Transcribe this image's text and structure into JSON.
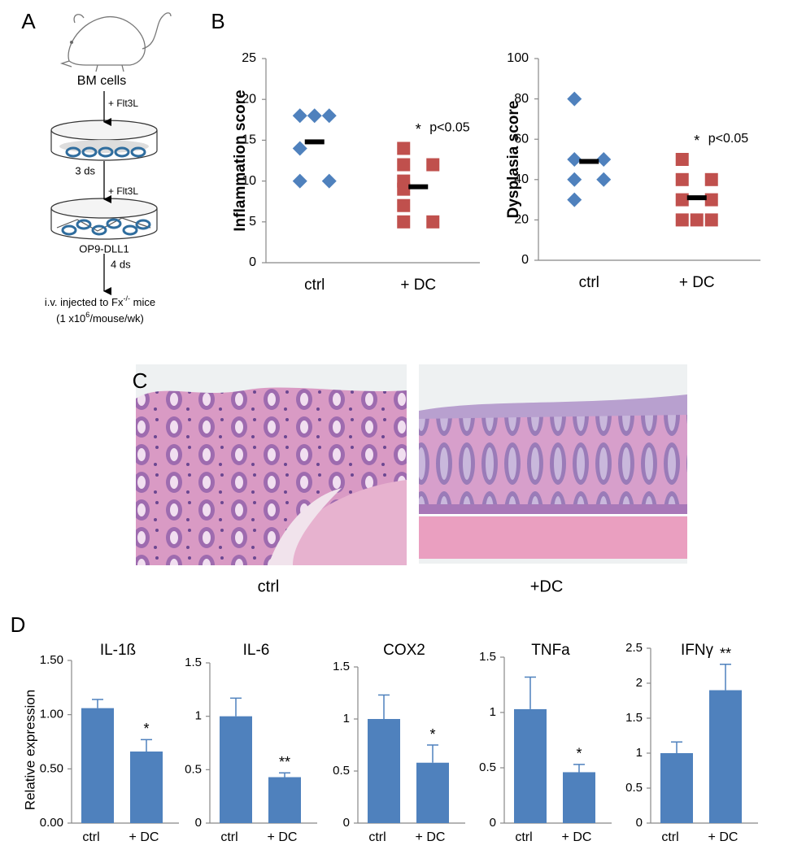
{
  "panel_labels": [
    "A",
    "B",
    "C",
    "D"
  ],
  "schematic": {
    "source": "BM cells",
    "step1": "+ Flt3L",
    "step2_time": "3 ds",
    "step2": "+ Flt3L",
    "culture": "OP9-DLL1",
    "step3_time": "4 ds",
    "outcome": [
      "i.v. injected to Fx",
      "-/-",
      " mice"
    ],
    "dose": [
      "(1 x10",
      "6",
      "/mouse/wk)"
    ]
  },
  "histology": {
    "captions": [
      "ctrl",
      "+DC"
    ]
  },
  "chart_data": [
    {
      "type": "dot",
      "ylabel": "Inflammation score",
      "ylim": [
        0,
        25
      ],
      "yticks": [
        0,
        5,
        10,
        15,
        20,
        25
      ],
      "p_value": "p<0.05",
      "groups": [
        {
          "category": "ctrl",
          "color": "#4f81bd",
          "marker": "diamond",
          "values": [
            18,
            18,
            18,
            14,
            10,
            10
          ],
          "mean": 14.8
        },
        {
          "category": "+ DC",
          "color": "#c0504d",
          "marker": "square",
          "values": [
            14,
            12,
            12,
            10,
            9,
            7,
            5,
            5
          ],
          "mean": 9.3,
          "annotation": "*"
        }
      ]
    },
    {
      "type": "dot",
      "ylabel": "Dysplasia score",
      "ylim": [
        0,
        100
      ],
      "yticks": [
        0,
        20,
        40,
        60,
        80,
        100
      ],
      "p_value": "p<0.05",
      "groups": [
        {
          "category": "ctrl",
          "color": "#4f81bd",
          "marker": "diamond",
          "values": [
            80,
            50,
            50,
            40,
            40,
            30
          ],
          "mean": 49
        },
        {
          "category": "+ DC",
          "color": "#c0504d",
          "marker": "square",
          "values": [
            50,
            40,
            40,
            30,
            30,
            20,
            20,
            20
          ],
          "mean": 31,
          "annotation": "*"
        }
      ]
    },
    {
      "type": "bar",
      "title": "IL-1ß",
      "ylabel": "Relative expression",
      "categories": [
        "ctrl",
        "+ DC"
      ],
      "values": [
        1.06,
        0.66
      ],
      "errors": [
        0.08,
        0.11
      ],
      "annotation": "*",
      "color": "#4f81bd",
      "ylim": [
        0,
        1.5
      ],
      "yticks": [
        {
          "value": 0,
          "label": "0.00"
        },
        {
          "value": 0.5,
          "label": "0.50"
        },
        {
          "value": 1,
          "label": "1.00"
        },
        {
          "value": 1.5,
          "label": "1.50"
        }
      ]
    },
    {
      "type": "bar",
      "title": "IL-6",
      "categories": [
        "ctrl",
        "+ DC"
      ],
      "values": [
        1.0,
        0.43
      ],
      "errors": [
        0.17,
        0.04
      ],
      "annotation": "**",
      "color": "#4f81bd",
      "ylim": [
        0,
        1.5
      ],
      "yticks": [
        0,
        0.5,
        1,
        1.5
      ]
    },
    {
      "type": "bar",
      "title": "COX2",
      "categories": [
        "ctrl",
        "+ DC"
      ],
      "values": [
        1.0,
        0.58
      ],
      "errors": [
        0.23,
        0.17
      ],
      "annotation": "*",
      "color": "#4f81bd",
      "ylim": [
        0,
        1.5
      ],
      "yticks": [
        0,
        0.5,
        1,
        1.5
      ]
    },
    {
      "type": "bar",
      "title": "TNFa",
      "categories": [
        "ctrl",
        "+ DC"
      ],
      "values": [
        1.03,
        0.46
      ],
      "errors": [
        0.29,
        0.07
      ],
      "annotation": "*",
      "color": "#4f81bd",
      "ylim": [
        0,
        1.5
      ],
      "yticks": [
        0,
        0.5,
        1,
        1.5
      ]
    },
    {
      "type": "bar",
      "title": "IFNγ",
      "categories": [
        "ctrl",
        "+ DC"
      ],
      "values": [
        1.0,
        1.9
      ],
      "errors": [
        0.16,
        0.37
      ],
      "annotation": "**",
      "color": "#4f81bd",
      "ylim": [
        0,
        2.5
      ],
      "yticks": [
        0,
        0.5,
        1,
        1.5,
        2,
        2.5
      ]
    }
  ]
}
